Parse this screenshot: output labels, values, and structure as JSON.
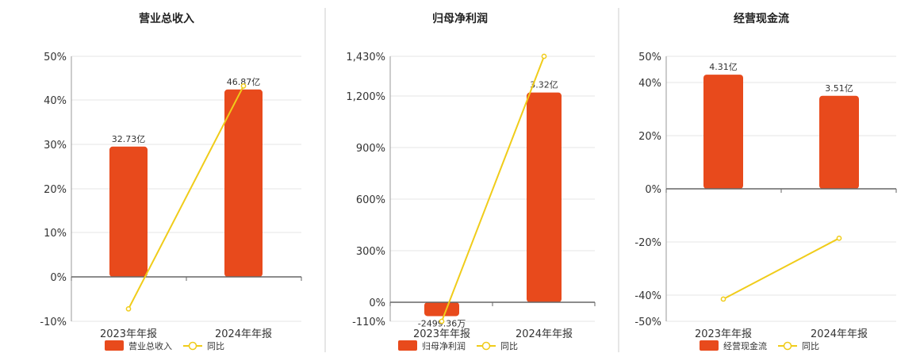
{
  "colors": {
    "bar": "#e84a1c",
    "line": "#f0cc1a",
    "axis": "#666666",
    "grid": "#e6e6e6",
    "divider": "#cccccc"
  },
  "chart_data": [
    {
      "type": "bar",
      "title": "营业总收入",
      "categories": [
        "2023年年报",
        "2024年年报"
      ],
      "series": [
        {
          "name": "营业总收入",
          "type": "bar",
          "values": [
            32.73,
            46.87
          ],
          "labels": [
            "32.73亿",
            "46.87亿"
          ]
        },
        {
          "name": "同比",
          "type": "line",
          "values": [
            -7.2,
            43.2
          ]
        }
      ],
      "ylim": [
        -10,
        50
      ],
      "yticks": [
        -10,
        0,
        10,
        20,
        30,
        40,
        50
      ],
      "ytick_labels": [
        "-10%",
        "0%",
        "10%",
        "20%",
        "30%",
        "40%",
        "50%"
      ],
      "bar_heights_pct": [
        29.5,
        42.4
      ],
      "grid": true,
      "legend": "bottom"
    },
    {
      "type": "bar",
      "title": "归母净利润",
      "categories": [
        "2023年年报",
        "2024年年报"
      ],
      "series": [
        {
          "name": "归母净利润",
          "type": "bar",
          "values": [
            -0.249936,
            3.32
          ],
          "labels": [
            "-2499.36万",
            "3.32亿"
          ]
        },
        {
          "name": "同比",
          "type": "line",
          "values": [
            -110,
            1430
          ]
        }
      ],
      "ylim": [
        -110,
        1430
      ],
      "yticks": [
        -110,
        0,
        300,
        600,
        900,
        1200,
        1430
      ],
      "ytick_labels": [
        "-110%",
        "0%",
        "300%",
        "600%",
        "900%",
        "1,200%",
        "1,430%"
      ],
      "bar_heights_pct": [
        -80,
        1220
      ],
      "grid": true,
      "legend": "bottom"
    },
    {
      "type": "bar",
      "title": "经营现金流",
      "categories": [
        "2023年年报",
        "2024年年报"
      ],
      "series": [
        {
          "name": "经营现金流",
          "type": "bar",
          "values": [
            4.31,
            3.51
          ],
          "labels": [
            "4.31亿",
            "3.51亿"
          ]
        },
        {
          "name": "同比",
          "type": "line",
          "values": [
            -41.5,
            -18.6
          ]
        }
      ],
      "ylim": [
        -50,
        50
      ],
      "yticks": [
        -50,
        -40,
        -20,
        0,
        20,
        40,
        50
      ],
      "ytick_labels": [
        "-50%",
        "-40%",
        "-20%",
        "0%",
        "20%",
        "40%",
        "50%"
      ],
      "bar_heights_pct": [
        43.0,
        35.0
      ],
      "grid": true,
      "legend": "bottom"
    }
  ]
}
